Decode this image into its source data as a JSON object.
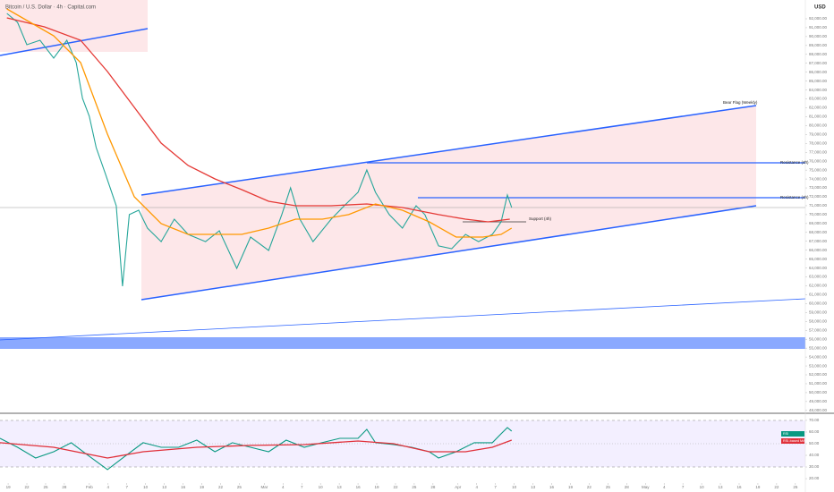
{
  "chart_data": [
    {
      "type": "line",
      "title": "Bitcoin / U.S. Dollar · 4h · Capital.com",
      "y_axis_label": "USD",
      "xlim": [
        17.7,
        146.6
      ],
      "ylim": [
        47680,
        94110
      ],
      "yticks": [
        {
          "value": 92000,
          "label": "92,000.00"
        },
        {
          "value": 91000,
          "label": "91,000.00"
        },
        {
          "value": 90000,
          "label": "90,000.00"
        },
        {
          "value": 89000,
          "label": "89,000.00"
        },
        {
          "value": 88000,
          "label": "88,000.00"
        },
        {
          "value": 87000,
          "label": "87,000.00"
        },
        {
          "value": 86000,
          "label": "86,000.00"
        },
        {
          "value": 85000,
          "label": "85,000.00"
        },
        {
          "value": 84000,
          "label": "84,000.00"
        },
        {
          "value": 83000,
          "label": "83,000.00"
        },
        {
          "value": 82000,
          "label": "82,000.00"
        },
        {
          "value": 81000,
          "label": "81,000.00"
        },
        {
          "value": 80000,
          "label": "80,000.00"
        },
        {
          "value": 79000,
          "label": "79,000.00"
        },
        {
          "value": 78000,
          "label": "78,000.00"
        },
        {
          "value": 77000,
          "label": "77,000.00"
        },
        {
          "value": 76000,
          "label": "76,000.00"
        },
        {
          "value": 75000,
          "label": "75,000.00"
        },
        {
          "value": 74000,
          "label": "74,000.00"
        },
        {
          "value": 73000,
          "label": "73,000.00"
        },
        {
          "value": 72000,
          "label": "72,000.00"
        },
        {
          "value": 71000,
          "label": "71,000.00"
        },
        {
          "value": 70000,
          "label": "70,000.00"
        },
        {
          "value": 69000,
          "label": "69,000.00"
        },
        {
          "value": 68000,
          "label": "68,000.00"
        },
        {
          "value": 67000,
          "label": "67,000.00"
        },
        {
          "value": 66000,
          "label": "66,000.00"
        },
        {
          "value": 65000,
          "label": "65,000.00"
        },
        {
          "value": 64000,
          "label": "64,000.00"
        },
        {
          "value": 63000,
          "label": "63,000.00"
        },
        {
          "value": 62000,
          "label": "62,000.00"
        },
        {
          "value": 61000,
          "label": "61,000.00"
        },
        {
          "value": 60000,
          "label": "60,000.00"
        },
        {
          "value": 59000,
          "label": "59,000.00"
        },
        {
          "value": 58000,
          "label": "58,000.00"
        },
        {
          "value": 57000,
          "label": "57,000.00"
        },
        {
          "value": 56000,
          "label": "56,000.00"
        },
        {
          "value": 55000,
          "label": "55,000.00"
        },
        {
          "value": 54000,
          "label": "54,000.00"
        },
        {
          "value": 53000,
          "label": "53,000.00"
        },
        {
          "value": 52000,
          "label": "52,000.00"
        },
        {
          "value": 51000,
          "label": "51,000.00"
        },
        {
          "value": 50000,
          "label": "50,000.00"
        },
        {
          "value": 49000,
          "label": "49,000.00"
        },
        {
          "value": 48000,
          "label": "48,000.00"
        }
      ],
      "annotations": [
        "Bear Flag (Weekly)",
        "Resistance (4h)",
        "Resistance (4h)",
        "Support (4h)"
      ],
      "series": [
        {
          "color": "#26a69a",
          "x": [
            18.8,
            20.5,
            22.0,
            24.1,
            26.3,
            28.4,
            29.9,
            30.9,
            32,
            33.1,
            34.6,
            36.3,
            37.3,
            38.4,
            39.9,
            41.3,
            43.5,
            45.6,
            47.8,
            50.6,
            52.8,
            55.6,
            57.8,
            60.7,
            62.8,
            64.2,
            65.7,
            67.8,
            70.7,
            72.8,
            75.0,
            76.4,
            77.8,
            80.0,
            82.1,
            84.3,
            85.7,
            87.9,
            90.0,
            92.2,
            94.3,
            96.5,
            97.9,
            98.9,
            99.6
          ],
          "values": [
            92600,
            91600,
            89090,
            89590,
            87580,
            89590,
            87080,
            83060,
            81050,
            77530,
            74520,
            71000,
            61960,
            70000,
            70490,
            68480,
            66970,
            69490,
            67780,
            66970,
            68180,
            63960,
            67480,
            65970,
            70000,
            73010,
            69490,
            66970,
            69490,
            71000,
            72500,
            75020,
            72500,
            70000,
            68480,
            71000,
            70000,
            66480,
            66170,
            67780,
            66970,
            67780,
            69190,
            72200,
            70790
          ]
        },
        {
          "color": "#e53935",
          "x": [
            18.8,
            24.8,
            30.6,
            34.9,
            39.2,
            43.5,
            47.8,
            52.1,
            56.4,
            60.7,
            65.0,
            70.7,
            76.4,
            82.1,
            87.9,
            92.2,
            95.8,
            99.3
          ],
          "values": [
            92100,
            91100,
            89590,
            86070,
            82050,
            78030,
            75520,
            74010,
            72800,
            71500,
            71000,
            71000,
            71200,
            70790,
            70000,
            69490,
            69190,
            69490
          ]
        },
        {
          "color": "#ff9800",
          "x": [
            18.8,
            26.3,
            30.6,
            34.9,
            39.2,
            43.5,
            47.8,
            52.1,
            56.4,
            60.7,
            65.0,
            69.3,
            73.5,
            77.8,
            82.1,
            86.4,
            90.7,
            95.0,
            97.9,
            99.6
          ],
          "values": [
            93110,
            90090,
            87080,
            79040,
            72000,
            68990,
            67780,
            67780,
            67780,
            68480,
            69490,
            69490,
            70000,
            71200,
            70490,
            69190,
            67480,
            67480,
            67780,
            68480
          ]
        }
      ]
    },
    {
      "type": "line",
      "xlim": [
        17.7,
        146.6
      ],
      "ylim": [
        16.2,
        73.8
      ],
      "yticks": [
        {
          "value": 70,
          "label": "70.00"
        },
        {
          "value": 60,
          "label": "60.00"
        },
        {
          "value": 50,
          "label": "50.00"
        },
        {
          "value": 40,
          "label": "40.00"
        },
        {
          "value": 30,
          "label": "30.00"
        },
        {
          "value": 20,
          "label": "20.00"
        }
      ],
      "xticks": [
        {
          "value": 19,
          "label": "19"
        },
        {
          "value": 22,
          "label": "22"
        },
        {
          "value": 25,
          "label": "25"
        },
        {
          "value": 28,
          "label": "28"
        },
        {
          "value": 32,
          "label": "Feb"
        },
        {
          "value": 35,
          "label": "4"
        },
        {
          "value": 38,
          "label": "7"
        },
        {
          "value": 41,
          "label": "10"
        },
        {
          "value": 44,
          "label": "13"
        },
        {
          "value": 47,
          "label": "16"
        },
        {
          "value": 50,
          "label": "19"
        },
        {
          "value": 53,
          "label": "22"
        },
        {
          "value": 56,
          "label": "25"
        },
        {
          "value": 60,
          "label": "Mar"
        },
        {
          "value": 63,
          "label": "4"
        },
        {
          "value": 66,
          "label": "7"
        },
        {
          "value": 69,
          "label": "10"
        },
        {
          "value": 72,
          "label": "13"
        },
        {
          "value": 75,
          "label": "16"
        },
        {
          "value": 78,
          "label": "19"
        },
        {
          "value": 81,
          "label": "22"
        },
        {
          "value": 84,
          "label": "25"
        },
        {
          "value": 87,
          "label": "28"
        },
        {
          "value": 91,
          "label": "Apr"
        },
        {
          "value": 94,
          "label": "4"
        },
        {
          "value": 97,
          "label": "7"
        },
        {
          "value": 100,
          "label": "10"
        },
        {
          "value": 103,
          "label": "13"
        },
        {
          "value": 106,
          "label": "16"
        },
        {
          "value": 109,
          "label": "19"
        },
        {
          "value": 112,
          "label": "22"
        },
        {
          "value": 115,
          "label": "25"
        },
        {
          "value": 118,
          "label": "28"
        },
        {
          "value": 121,
          "label": "May"
        },
        {
          "value": 124,
          "label": "4"
        },
        {
          "value": 127,
          "label": "7"
        },
        {
          "value": 130,
          "label": "10"
        },
        {
          "value": 133,
          "label": "13"
        },
        {
          "value": 136,
          "label": "16"
        },
        {
          "value": 139,
          "label": "19"
        },
        {
          "value": 142,
          "label": "22"
        },
        {
          "value": 145,
          "label": "25"
        }
      ],
      "series": [
        {
          "name": "RSI",
          "color": "#089981",
          "x": [
            17.7,
            20.5,
            23.4,
            26.3,
            29.1,
            32,
            34.9,
            37.7,
            40.6,
            43.5,
            46.3,
            49.2,
            52.1,
            54.9,
            57.8,
            60.7,
            63.5,
            66.4,
            69.2,
            72.1,
            75,
            76.4,
            77.8,
            80.7,
            83.6,
            86.4,
            87.9,
            90.7,
            93.6,
            96.5,
            97.9,
            98.9,
            99.6
          ],
          "values": [
            54.6,
            46.9,
            37.7,
            43.1,
            50.8,
            39.2,
            27.7,
            39.2,
            50.8,
            46.9,
            46.9,
            53.1,
            43.1,
            50.8,
            46.9,
            43.1,
            53.1,
            46.9,
            50.8,
            54.6,
            54.6,
            62.3,
            50.8,
            49.2,
            46.9,
            43.1,
            37.7,
            43.1,
            50.8,
            50.8,
            58.5,
            63.8,
            60.8
          ]
        },
        {
          "name": "RSI-based MA",
          "color": "#e0303a",
          "x": [
            17.7,
            26.3,
            34.9,
            40.6,
            49.2,
            57.8,
            66.4,
            75,
            80.7,
            86.4,
            92.2,
            96.5,
            99.6
          ],
          "values": [
            50.8,
            46.9,
            37.7,
            43.1,
            46.9,
            48.5,
            49.2,
            52.3,
            50.0,
            43.1,
            43.1,
            46.9,
            53.1
          ]
        }
      ]
    }
  ]
}
